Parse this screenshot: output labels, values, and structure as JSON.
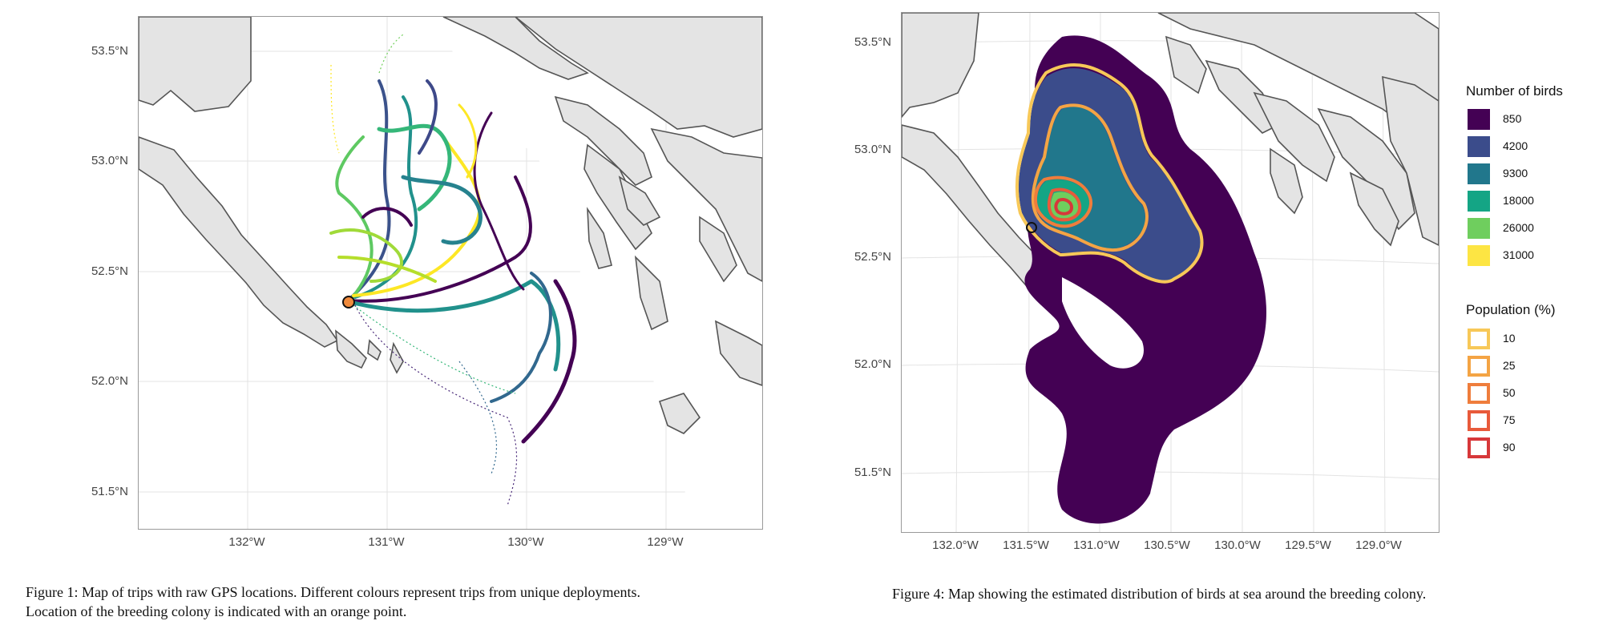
{
  "figure1": {
    "caption_line1": "Figure 1: Map of trips with raw GPS locations. Different colours represent trips from unique deployments.",
    "caption_line2": "Location of the breeding colony is indicated with an orange point.",
    "y_ticks": [
      "53.5°N",
      "53.0°N",
      "52.5°N",
      "52.0°N",
      "51.5°N"
    ],
    "x_ticks": [
      "132°W",
      "131°W",
      "130°W",
      "129°W"
    ],
    "colony_color": "#f08a3c"
  },
  "figure4": {
    "caption": "Figure 4: Map showing the estimated distribution of birds at sea around the breeding colony.",
    "y_ticks": [
      "53.5°N",
      "53.0°N",
      "52.5°N",
      "52.0°N",
      "51.5°N"
    ],
    "x_ticks": [
      "132.0°W",
      "131.5°W",
      "131.0°W",
      "130.5°W",
      "130.0°W",
      "129.5°W",
      "129.0°W"
    ],
    "legend_birds": {
      "title": "Number of birds",
      "items": [
        {
          "label": "850",
          "color": "#440154"
        },
        {
          "label": "4200",
          "color": "#3b4c8b"
        },
        {
          "label": "9300",
          "color": "#21778c"
        },
        {
          "label": "18000",
          "color": "#14a585"
        },
        {
          "label": "26000",
          "color": "#6fce5e"
        },
        {
          "label": "31000",
          "color": "#fde543"
        }
      ]
    },
    "legend_population": {
      "title": "Population (%)",
      "items": [
        {
          "label": "10",
          "color": "#f7c858"
        },
        {
          "label": "25",
          "color": "#f4a444"
        },
        {
          "label": "50",
          "color": "#ef7d3c"
        },
        {
          "label": "75",
          "color": "#e85a3b"
        },
        {
          "label": "90",
          "color": "#d7383a"
        }
      ]
    }
  }
}
